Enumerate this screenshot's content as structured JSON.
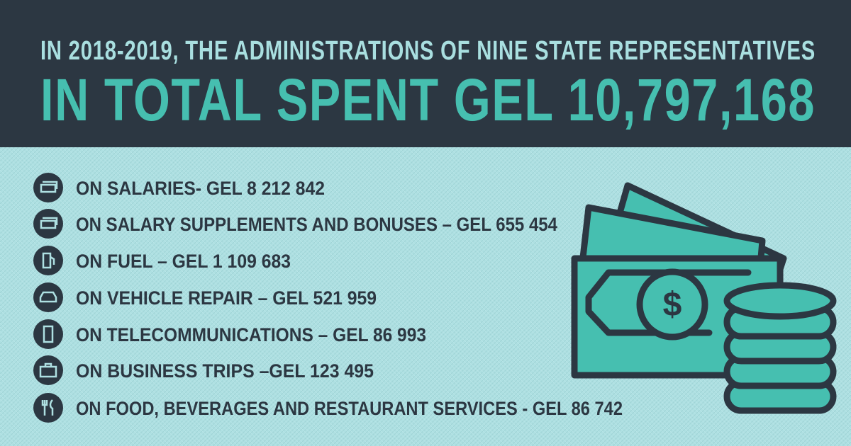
{
  "header": {
    "line1": "IN 2018-2019, THE ADMINISTRATIONS OF NINE STATE REPRESENTATIVES",
    "line2": "IN TOTAL SPENT GEL 10,797,168"
  },
  "items": [
    "ON SALARIES- GEL 8 212 842",
    "ON SALARY SUPPLEMENTS AND BONUSES – GEL 655 454",
    "ON FUEL – GEL 1 109 683",
    "ON VEHICLE REPAIR – GEL 521 959",
    "ON TELECOMMUNICATIONS – GEL 86 993",
    "ON BUSINESS TRIPS –GEL 123 495",
    "ON FOOD, BEVERAGES AND RESTAURANT SERVICES - GEL 86 742"
  ]
}
